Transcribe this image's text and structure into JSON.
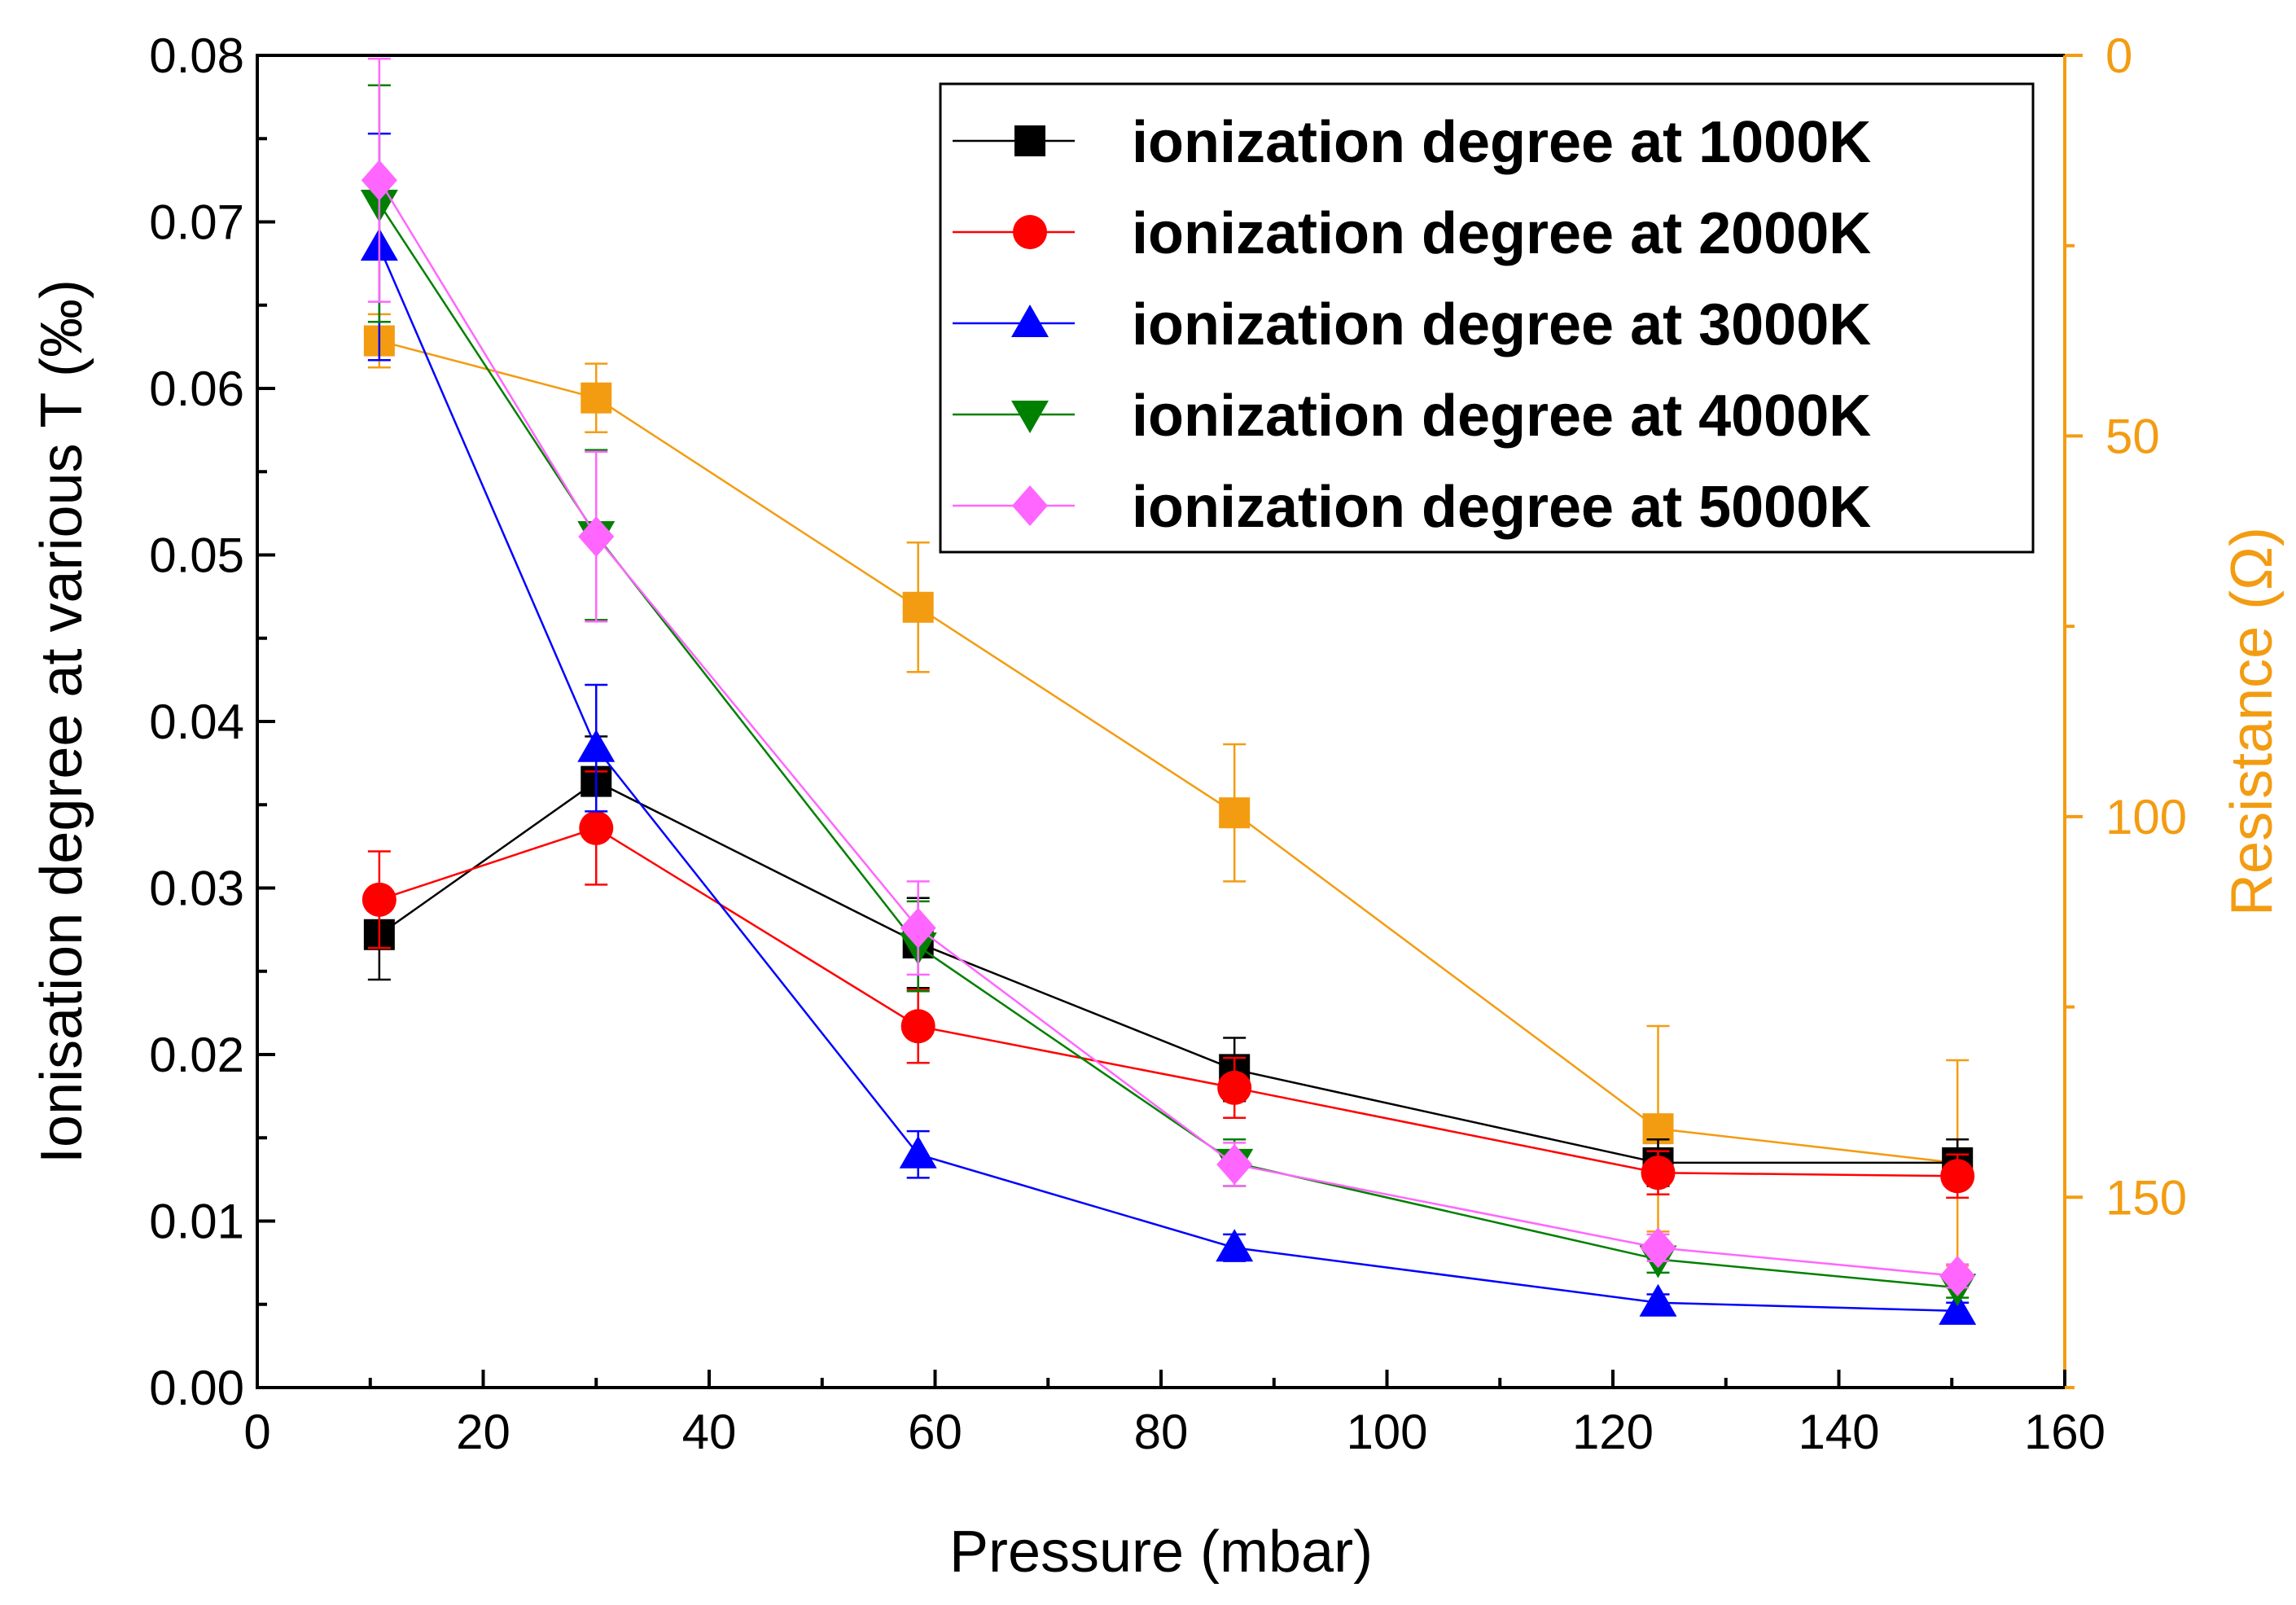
{
  "chart_data": {
    "type": "line",
    "title": "",
    "xlabel": "Pressure (mbar)",
    "ylabel": "Ionisation degree at various T (‰)",
    "y2label": "Resistance (Ω)",
    "xlim": [
      0,
      160
    ],
    "ylim": [
      0,
      0.08
    ],
    "y2lim": [
      0,
      175
    ],
    "y2_inverted": true,
    "xticks": [
      "0",
      "20",
      "40",
      "60",
      "80",
      "100",
      "120",
      "140",
      "160"
    ],
    "yticks": [
      "0.00",
      "0.01",
      "0.02",
      "0.03",
      "0.04",
      "0.05",
      "0.06",
      "0.07",
      "0.08"
    ],
    "y2ticks": [
      "0",
      "50",
      "100",
      "150"
    ],
    "x": [
      10.8,
      30,
      58.5,
      86.5,
      124,
      150.5
    ],
    "legend_position": "top-right",
    "grid": false,
    "axis_colors": {
      "left": "#000000",
      "right": "#f39c12"
    },
    "series": [
      {
        "name": "ionization degree at 1000K",
        "axis": "left",
        "marker": "square",
        "color": "#000000",
        "values": [
          0.0272,
          0.0364,
          0.0267,
          0.0191,
          0.0135,
          0.0135
        ],
        "errors": [
          0.0027,
          0.0027,
          0.0027,
          0.0019,
          0.0014,
          0.0014
        ]
      },
      {
        "name": "ionization degree at 2000K",
        "axis": "left",
        "marker": "circle",
        "color": "#ff0000",
        "values": [
          0.0293,
          0.0336,
          0.0217,
          0.018,
          0.0129,
          0.0127
        ],
        "errors": [
          0.0029,
          0.0034,
          0.0022,
          0.0018,
          0.0013,
          0.0013
        ]
      },
      {
        "name": "ionization degree at 3000K",
        "axis": "left",
        "marker": "triangle-up",
        "color": "#0000ff",
        "values": [
          0.0685,
          0.0384,
          0.014,
          0.0084,
          0.0051,
          0.0046
        ],
        "errors": [
          0.0068,
          0.0038,
          0.0014,
          0.0008,
          0.0005,
          0.0005
        ]
      },
      {
        "name": "ionization degree at 4000K",
        "axis": "left",
        "marker": "triangle-down",
        "color": "#008000",
        "values": [
          0.0711,
          0.0512,
          0.0265,
          0.0135,
          0.0077,
          0.006
        ],
        "errors": [
          0.0071,
          0.0051,
          0.0027,
          0.0014,
          0.0008,
          0.0006
        ]
      },
      {
        "name": "ionization degree at 5000K",
        "axis": "left",
        "marker": "diamond",
        "color": "#ff66ff",
        "values": [
          0.0725,
          0.0511,
          0.0276,
          0.0134,
          0.0084,
          0.0067
        ],
        "errors": [
          0.0073,
          0.0051,
          0.0028,
          0.0013,
          0.0008,
          0.0007
        ]
      },
      {
        "name": "Resistance",
        "axis": "right",
        "marker": "square",
        "color": "#f39c12",
        "in_legend": false,
        "values": [
          37.5,
          45.0,
          72.5,
          99.5,
          141.0,
          145.5
        ],
        "errors": [
          3.5,
          4.5,
          8.5,
          9.0,
          13.5,
          13.5
        ]
      }
    ]
  }
}
